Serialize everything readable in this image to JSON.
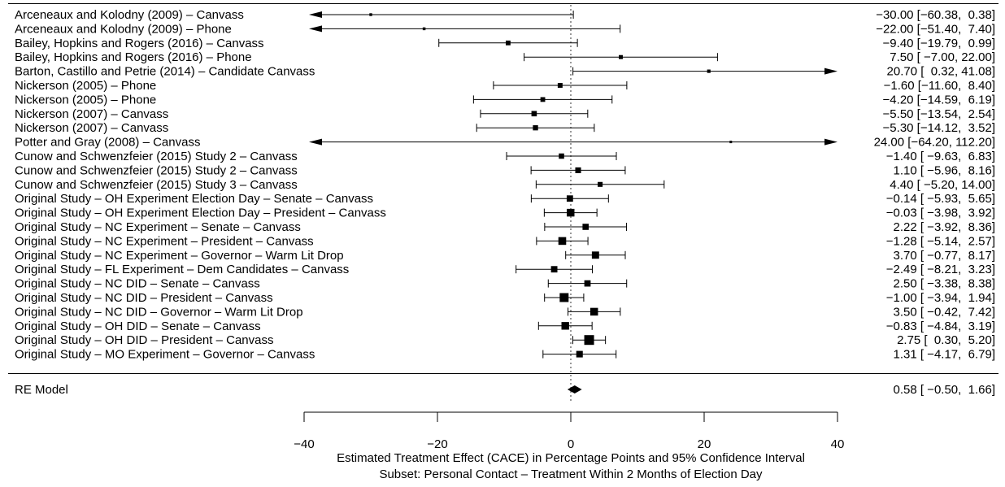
{
  "chart_data": {
    "type": "forest",
    "xlabel": "Estimated Treatment Effect (CACE) in Percentage Points and 95% Confidence Interval",
    "subtitle": "Subset: Personal Contact – Treatment Within 2 Months of Election Day",
    "xlim": [
      -40,
      40
    ],
    "xticks": [
      -40,
      -20,
      0,
      20,
      40
    ],
    "xtick_labels": [
      "−40",
      "−20",
      "0",
      "20",
      "40"
    ],
    "reference_line": 0,
    "studies": [
      {
        "label": "Arceneaux and Kolodny (2009) – Canvass",
        "estimate": -30.0,
        "lower": -60.38,
        "upper": 0.38,
        "text": "−30.00 [−60.38,  0.38]"
      },
      {
        "label": "Arceneaux and Kolodny (2009) – Phone",
        "estimate": -22.0,
        "lower": -51.4,
        "upper": 7.4,
        "text": "−22.00 [−51.40,  7.40]"
      },
      {
        "label": "Bailey, Hopkins and Rogers (2016) – Canvass",
        "estimate": -9.4,
        "lower": -19.79,
        "upper": 0.99,
        "text": "−9.40 [−19.79,  0.99]"
      },
      {
        "label": "Bailey, Hopkins and Rogers (2016) – Phone",
        "estimate": 7.5,
        "lower": -7.0,
        "upper": 22.0,
        "text": "7.50 [ −7.00, 22.00]"
      },
      {
        "label": "Barton, Castillo and Petrie (2014) – Candidate Canvass",
        "estimate": 20.7,
        "lower": 0.32,
        "upper": 41.08,
        "text": "20.70 [  0.32, 41.08]"
      },
      {
        "label": "Nickerson (2005) – Phone",
        "estimate": -1.6,
        "lower": -11.6,
        "upper": 8.4,
        "text": "−1.60 [−11.60,  8.40]"
      },
      {
        "label": "Nickerson (2005) – Phone",
        "estimate": -4.2,
        "lower": -14.59,
        "upper": 6.19,
        "text": "−4.20 [−14.59,  6.19]"
      },
      {
        "label": "Nickerson (2007) – Canvass",
        "estimate": -5.5,
        "lower": -13.54,
        "upper": 2.54,
        "text": "−5.50 [−13.54,  2.54]"
      },
      {
        "label": "Nickerson (2007) – Canvass",
        "estimate": -5.3,
        "lower": -14.12,
        "upper": 3.52,
        "text": "−5.30 [−14.12,  3.52]"
      },
      {
        "label": "Potter and Gray (2008) – Canvass",
        "estimate": 24.0,
        "lower": -64.2,
        "upper": 112.2,
        "text": "24.00 [−64.20, 112.20]"
      },
      {
        "label": "Cunow and Schwenzfeier (2015) Study 2 – Canvass",
        "estimate": -1.4,
        "lower": -9.63,
        "upper": 6.83,
        "text": "−1.40 [ −9.63,  6.83]"
      },
      {
        "label": "Cunow and Schwenzfeier (2015) Study 2 – Canvass",
        "estimate": 1.1,
        "lower": -5.96,
        "upper": 8.16,
        "text": "1.10 [ −5.96,  8.16]"
      },
      {
        "label": "Cunow and Schwenzfeier (2015) Study 3 – Canvass",
        "estimate": 4.4,
        "lower": -5.2,
        "upper": 14.0,
        "text": "4.40 [ −5.20, 14.00]"
      },
      {
        "label": "Original Study – OH Experiment Election Day – Senate – Canvass",
        "estimate": -0.14,
        "lower": -5.93,
        "upper": 5.65,
        "text": "−0.14 [ −5.93,  5.65]"
      },
      {
        "label": "Original Study – OH Experiment Election Day – President – Canvass",
        "estimate": -0.03,
        "lower": -3.98,
        "upper": 3.92,
        "text": "−0.03 [ −3.98,  3.92]"
      },
      {
        "label": "Original Study – NC Experiment – Senate – Canvass",
        "estimate": 2.22,
        "lower": -3.92,
        "upper": 8.36,
        "text": "2.22 [ −3.92,  8.36]"
      },
      {
        "label": "Original Study – NC Experiment – President – Canvass",
        "estimate": -1.28,
        "lower": -5.14,
        "upper": 2.57,
        "text": "−1.28 [ −5.14,  2.57]"
      },
      {
        "label": "Original Study – NC Experiment – Governor – Warm Lit Drop",
        "estimate": 3.7,
        "lower": -0.77,
        "upper": 8.17,
        "text": "3.70 [ −0.77,  8.17]"
      },
      {
        "label": "Original Study – FL Experiment – Dem Candidates – Canvass",
        "estimate": -2.49,
        "lower": -8.21,
        "upper": 3.23,
        "text": "−2.49 [ −8.21,  3.23]"
      },
      {
        "label": "Original Study – NC DID – Senate – Canvass",
        "estimate": 2.5,
        "lower": -3.38,
        "upper": 8.38,
        "text": "2.50 [ −3.38,  8.38]"
      },
      {
        "label": "Original Study – NC DID – President – Canvass",
        "estimate": -1.0,
        "lower": -3.94,
        "upper": 1.94,
        "text": "−1.00 [ −3.94,  1.94]"
      },
      {
        "label": "Original Study – NC DID – Governor – Warm Lit Drop",
        "estimate": 3.5,
        "lower": -0.42,
        "upper": 7.42,
        "text": "3.50 [ −0.42,  7.42]"
      },
      {
        "label": "Original Study – OH DID – Senate – Canvass",
        "estimate": -0.83,
        "lower": -4.84,
        "upper": 3.19,
        "text": "−0.83 [ −4.84,  3.19]"
      },
      {
        "label": "Original Study – OH DID – President – Canvass",
        "estimate": 2.75,
        "lower": 0.3,
        "upper": 5.2,
        "text": "2.75 [  0.30,  5.20]"
      },
      {
        "label": "Original Study – MO Experiment – Governor – Canvass",
        "estimate": 1.31,
        "lower": -4.17,
        "upper": 6.79,
        "text": "1.31 [ −4.17,  6.79]"
      }
    ],
    "summary": {
      "label": "RE Model",
      "estimate": 0.58,
      "lower": -0.5,
      "upper": 1.66,
      "text": "0.58 [ −0.50,  1.66]"
    }
  }
}
